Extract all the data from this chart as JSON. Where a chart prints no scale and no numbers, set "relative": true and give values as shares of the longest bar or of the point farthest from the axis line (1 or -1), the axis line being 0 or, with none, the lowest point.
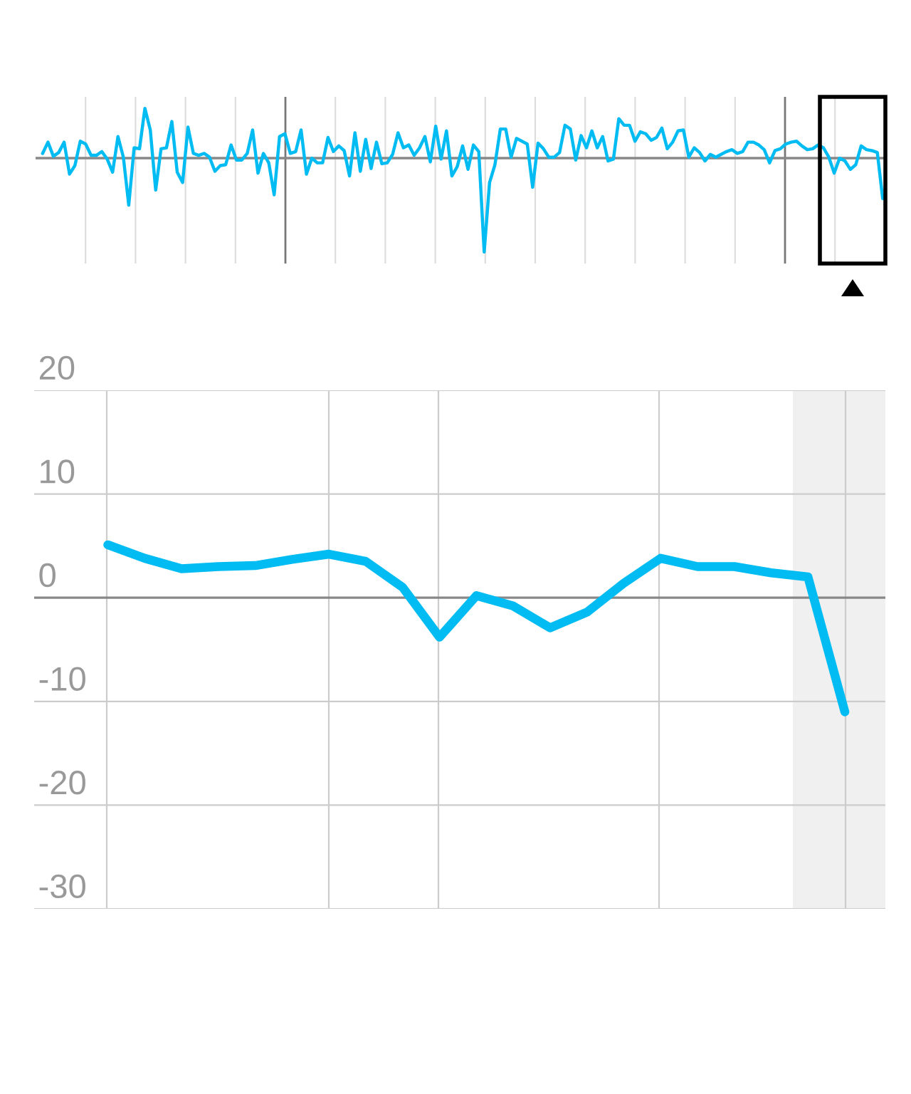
{
  "chart_data": [
    {
      "type": "line",
      "relative": true,
      "grid": "x",
      "tick_labels": false,
      "marker": "none",
      "line_style": "solid",
      "categories": [
        null,
        null,
        null,
        null,
        null,
        null,
        null,
        null,
        null,
        null,
        null,
        null,
        null,
        null,
        null,
        null,
        null,
        null,
        null,
        null,
        null,
        null,
        null,
        null,
        null,
        null,
        null,
        null,
        null,
        null,
        null,
        null,
        null,
        null,
        null,
        null,
        null,
        null,
        null,
        null,
        null,
        null,
        null,
        null,
        null,
        null,
        null,
        null,
        null,
        null,
        null,
        null,
        null,
        null,
        null,
        null,
        null,
        null,
        null,
        null,
        null,
        null,
        null,
        null,
        null,
        null,
        null,
        null,
        null,
        null,
        null,
        null,
        null,
        null,
        null,
        null,
        null,
        null,
        null,
        null,
        null,
        null,
        null,
        null,
        null,
        null,
        null,
        null,
        null,
        null,
        null,
        null,
        null,
        null,
        null,
        null,
        null,
        null,
        null,
        null,
        null,
        null,
        null,
        null,
        null,
        null,
        null,
        null,
        null,
        null,
        null,
        null,
        null,
        null,
        null,
        null,
        null,
        null,
        null,
        null,
        null,
        null,
        null,
        null,
        null,
        null,
        null,
        null,
        null,
        null,
        null,
        null,
        null,
        null,
        null,
        null,
        null,
        null,
        null,
        null,
        null,
        null,
        null,
        null,
        null,
        null,
        null,
        null,
        null,
        null,
        null,
        null,
        null,
        null,
        null,
        null,
        null
      ],
      "ref_lines": [
        {
          "axis": "y",
          "value": 0,
          "label": null,
          "color": "#888888"
        }
      ],
      "series": [
        {
          "color": "#00bcf2",
          "values": [
            0.05,
            0.17,
            0.02,
            0.06,
            0.17,
            -0.17,
            -0.08,
            0.18,
            0.15,
            0.03,
            0.03,
            0.07,
            -0.01,
            -0.15,
            0.23,
            0.01,
            -0.5,
            0.11,
            0.1,
            0.53,
            0.3,
            -0.34,
            0.1,
            0.11,
            0.39,
            -0.15,
            -0.26,
            0.33,
            0.05,
            0.03,
            0.05,
            0.01,
            -0.14,
            -0.08,
            -0.07,
            0.14,
            -0.02,
            -0.02,
            0.05,
            0.3,
            -0.16,
            0.05,
            -0.05,
            -0.39,
            0.23,
            0.26,
            0.05,
            0.07,
            0.3,
            -0.17,
            0,
            -0.05,
            -0.05,
            0.22,
            0.07,
            0.13,
            0.08,
            -0.19,
            0.27,
            -0.14,
            0.2,
            -0.11,
            0.17,
            -0.06,
            -0.05,
            0.04,
            0.27,
            0.11,
            0.14,
            0.03,
            0.11,
            0.23,
            -0.04,
            0.34,
            -0.01,
            0.29,
            -0.19,
            -0.09,
            0.13,
            -0.12,
            0.14,
            0.07,
            -1,
            -0.26,
            -0.07,
            0.31,
            0.31,
            0.01,
            0.21,
            0.18,
            0.15,
            -0.31,
            0.16,
            0.1,
            0.01,
            0.01,
            0.06,
            0.35,
            0.31,
            -0.02,
            0.24,
            0.11,
            0.29,
            0.11,
            0.23,
            -0.03,
            -0.01,
            0.42,
            0.35,
            0.35,
            0.18,
            0.28,
            0.26,
            0.19,
            0.22,
            0.32,
            0.1,
            0.17,
            0.29,
            0.3,
            0.01,
            0.11,
            0.06,
            -0.03,
            0.04,
            0.01,
            0.04,
            0.07,
            0.09,
            0.05,
            0.07,
            0.17,
            0.17,
            0.14,
            0.09,
            -0.05,
            0.08,
            0.1,
            0.15,
            0.17,
            0.18,
            0.13,
            0.09,
            0.1,
            0.14,
            0.11,
            0.01,
            -0.16,
            0,
            -0.03,
            -0.12,
            -0.07,
            0.13,
            0.09,
            0.08,
            0.06,
            -0.43
          ]
        }
      ]
    },
    {
      "type": "line",
      "grid": true,
      "tick_labels": "y",
      "marker": "none",
      "line_style": "solid",
      "categories": [
        null,
        null,
        null,
        null,
        null,
        null,
        null,
        null,
        null,
        null,
        null,
        null,
        null,
        null,
        null,
        null,
        null,
        null,
        null,
        null,
        null
      ],
      "ylim": [
        -30,
        20
      ],
      "yticks": [
        -30,
        -20,
        -10,
        0,
        10,
        20
      ],
      "ref_lines": [
        {
          "axis": "y",
          "value": 0,
          "label": null,
          "color": "#888888"
        }
      ],
      "series": [
        {
          "color": "#00bcf2",
          "values": [
            5.1,
            3.8,
            2.8,
            3.0,
            3.1,
            3.7,
            4.2,
            3.5,
            1.0,
            -3.8,
            0.2,
            -0.8,
            -2.9,
            -1.4,
            1.4,
            3.8,
            3.0,
            3.0,
            2.4,
            2.0,
            -11.0
          ]
        }
      ]
    }
  ]
}
